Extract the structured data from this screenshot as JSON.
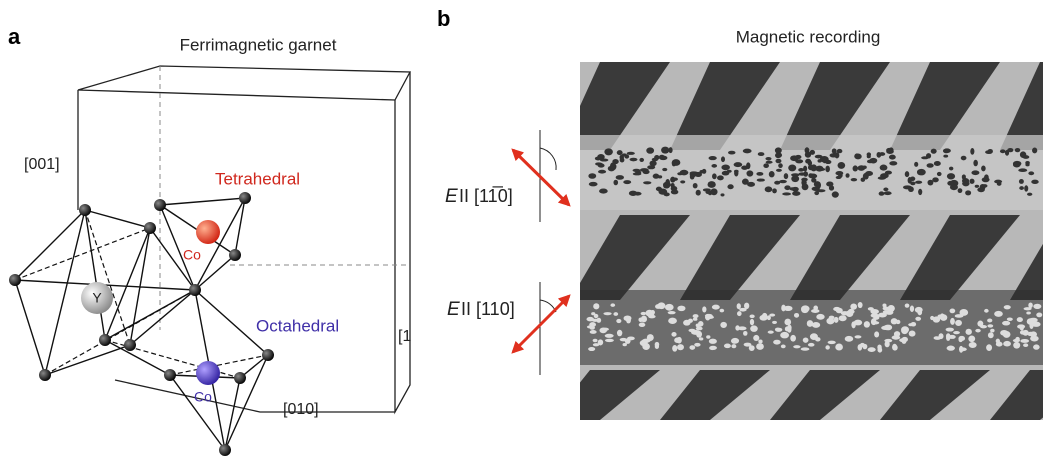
{
  "panel_a": {
    "label": "a",
    "title": "Ferrimagnetic garnet",
    "axis_001": "[001]",
    "axis_010": "[010]",
    "axis_100": "[1",
    "tetrahedral": {
      "label": "Tetrahedral",
      "ion": "Co"
    },
    "octahedral": {
      "label": "Octahedral",
      "ion": "Co"
    },
    "dodecahedral_ion": "Y"
  },
  "panel_b": {
    "label": "b",
    "title": "Magnetic recording",
    "polarization_1": {
      "symbol": "E",
      "text": "II [11̅0]"
    },
    "polarization_2": {
      "symbol": "E",
      "text": "II [110]"
    }
  }
}
